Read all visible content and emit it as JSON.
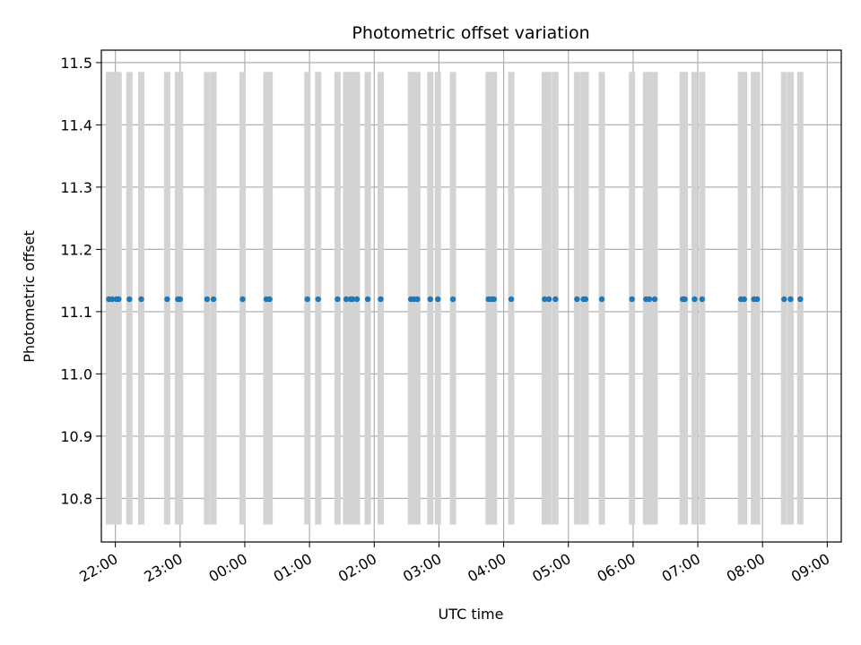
{
  "chart_data": {
    "type": "scatter",
    "title": "Photometric offset variation",
    "xlabel": "UTC time",
    "ylabel": "Photometric offset",
    "grid": true,
    "legend": "none",
    "x_axis": {
      "kind": "time",
      "range": [
        "21:47",
        "09:13"
      ],
      "ticks": [
        "22:00",
        "23:00",
        "00:00",
        "01:00",
        "02:00",
        "03:00",
        "04:00",
        "05:00",
        "06:00",
        "07:00",
        "08:00",
        "09:00"
      ]
    },
    "y_axis": {
      "range": [
        10.73,
        11.52
      ],
      "ticks": [
        "10.8",
        "10.9",
        "11.0",
        "11.1",
        "11.2",
        "11.3",
        "11.4",
        "11.5"
      ]
    },
    "colors": {
      "points": "#1f77b4",
      "bars": "#d3d3d3",
      "grid": "#b0b0b0"
    },
    "bars": {
      "y_range": [
        10.758,
        11.485
      ],
      "x": [
        "21:54",
        "21:57",
        "22:01",
        "22:03",
        "22:13",
        "22:24",
        "22:48",
        "22:58",
        "23:00",
        "23:25",
        "23:31",
        "23:58",
        "00:20",
        "00:23",
        "00:58",
        "01:08",
        "01:26",
        "01:34",
        "01:38",
        "01:40",
        "01:44",
        "01:54",
        "02:06",
        "02:34",
        "02:37",
        "02:40",
        "02:52",
        "02:59",
        "03:13",
        "03:46",
        "03:49",
        "03:51",
        "04:07",
        "04:38",
        "04:42",
        "04:48",
        "05:08",
        "05:14",
        "05:16",
        "05:31",
        "05:59",
        "06:12",
        "06:15",
        "06:20",
        "06:46",
        "06:48",
        "06:57",
        "07:04",
        "07:40",
        "07:43",
        "07:52",
        "07:55",
        "08:20",
        "08:26",
        "08:35"
      ]
    },
    "series": [
      {
        "x": [
          "21:54",
          "21:57",
          "22:01",
          "22:03",
          "22:13",
          "22:24",
          "22:48",
          "22:58",
          "23:00",
          "23:25",
          "23:31",
          "23:58",
          "00:20",
          "00:23",
          "00:58",
          "01:08",
          "01:26",
          "01:34",
          "01:38",
          "01:40",
          "01:44",
          "01:54",
          "02:06",
          "02:34",
          "02:37",
          "02:40",
          "02:52",
          "02:59",
          "03:13",
          "03:46",
          "03:49",
          "03:51",
          "04:07",
          "04:38",
          "04:42",
          "04:48",
          "05:08",
          "05:14",
          "05:16",
          "05:31",
          "05:59",
          "06:12",
          "06:15",
          "06:20",
          "06:46",
          "06:48",
          "06:57",
          "07:04",
          "07:40",
          "07:43",
          "07:52",
          "07:55",
          "08:20",
          "08:26",
          "08:35"
        ],
        "y": [
          11.12,
          11.12,
          11.12,
          11.12,
          11.12,
          11.12,
          11.12,
          11.12,
          11.12,
          11.12,
          11.12,
          11.12,
          11.12,
          11.12,
          11.12,
          11.12,
          11.12,
          11.12,
          11.12,
          11.12,
          11.12,
          11.12,
          11.12,
          11.12,
          11.12,
          11.12,
          11.12,
          11.12,
          11.12,
          11.12,
          11.12,
          11.12,
          11.12,
          11.12,
          11.12,
          11.12,
          11.12,
          11.12,
          11.12,
          11.12,
          11.12,
          11.12,
          11.12,
          11.12,
          11.12,
          11.12,
          11.12,
          11.12,
          11.12,
          11.12,
          11.12,
          11.12,
          11.12,
          11.12,
          11.12
        ]
      }
    ]
  }
}
